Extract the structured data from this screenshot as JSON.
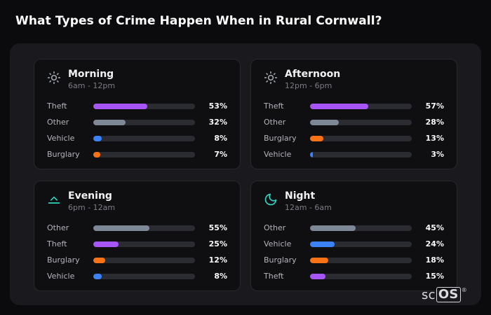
{
  "page": {
    "title": "What Types of Crime Happen When in Rural Cornwall?"
  },
  "brand": {
    "prefix": "sc",
    "boxed": "OS",
    "mark": "®"
  },
  "colors": {
    "theft": "#a855f7",
    "other": "#7e8795",
    "vehicle": "#3b82f6",
    "burglary": "#f97316",
    "accent_teal": "#2dd4bf",
    "icon_gray": "#9aa0a6",
    "panel_bg": "#1a1a1e",
    "card_bg": "#0f0f12",
    "track_bg": "#2b2b32"
  },
  "chart_data": [
    {
      "type": "bar",
      "orientation": "horizontal",
      "title": "Morning",
      "subtitle": "6am - 12pm",
      "icon": "sun-icon",
      "categories": [
        "Theft",
        "Other",
        "Vehicle",
        "Burglary"
      ],
      "values": [
        53,
        32,
        8,
        7
      ],
      "value_labels": [
        "53%",
        "32%",
        "8%",
        "7%"
      ],
      "colors": [
        "#a855f7",
        "#7e8795",
        "#3b82f6",
        "#f97316"
      ],
      "xlim": [
        0,
        100
      ],
      "unit": "%"
    },
    {
      "type": "bar",
      "orientation": "horizontal",
      "title": "Afternoon",
      "subtitle": "12pm - 6pm",
      "icon": "sun-icon",
      "categories": [
        "Theft",
        "Other",
        "Burglary",
        "Vehicle"
      ],
      "values": [
        57,
        28,
        13,
        3
      ],
      "value_labels": [
        "57%",
        "28%",
        "13%",
        "3%"
      ],
      "colors": [
        "#a855f7",
        "#7e8795",
        "#f97316",
        "#3b82f6"
      ],
      "xlim": [
        0,
        100
      ],
      "unit": "%"
    },
    {
      "type": "bar",
      "orientation": "horizontal",
      "title": "Evening",
      "subtitle": "6pm - 12am",
      "icon": "sunset-icon",
      "categories": [
        "Other",
        "Theft",
        "Burglary",
        "Vehicle"
      ],
      "values": [
        55,
        25,
        12,
        8
      ],
      "value_labels": [
        "55%",
        "25%",
        "12%",
        "8%"
      ],
      "colors": [
        "#7e8795",
        "#a855f7",
        "#f97316",
        "#3b82f6"
      ],
      "xlim": [
        0,
        100
      ],
      "unit": "%"
    },
    {
      "type": "bar",
      "orientation": "horizontal",
      "title": "Night",
      "subtitle": "12am - 6am",
      "icon": "moon-icon",
      "categories": [
        "Other",
        "Vehicle",
        "Burglary",
        "Theft"
      ],
      "values": [
        45,
        24,
        18,
        15
      ],
      "value_labels": [
        "45%",
        "24%",
        "18%",
        "15%"
      ],
      "colors": [
        "#7e8795",
        "#3b82f6",
        "#f97316",
        "#a855f7"
      ],
      "xlim": [
        0,
        100
      ],
      "unit": "%"
    }
  ]
}
